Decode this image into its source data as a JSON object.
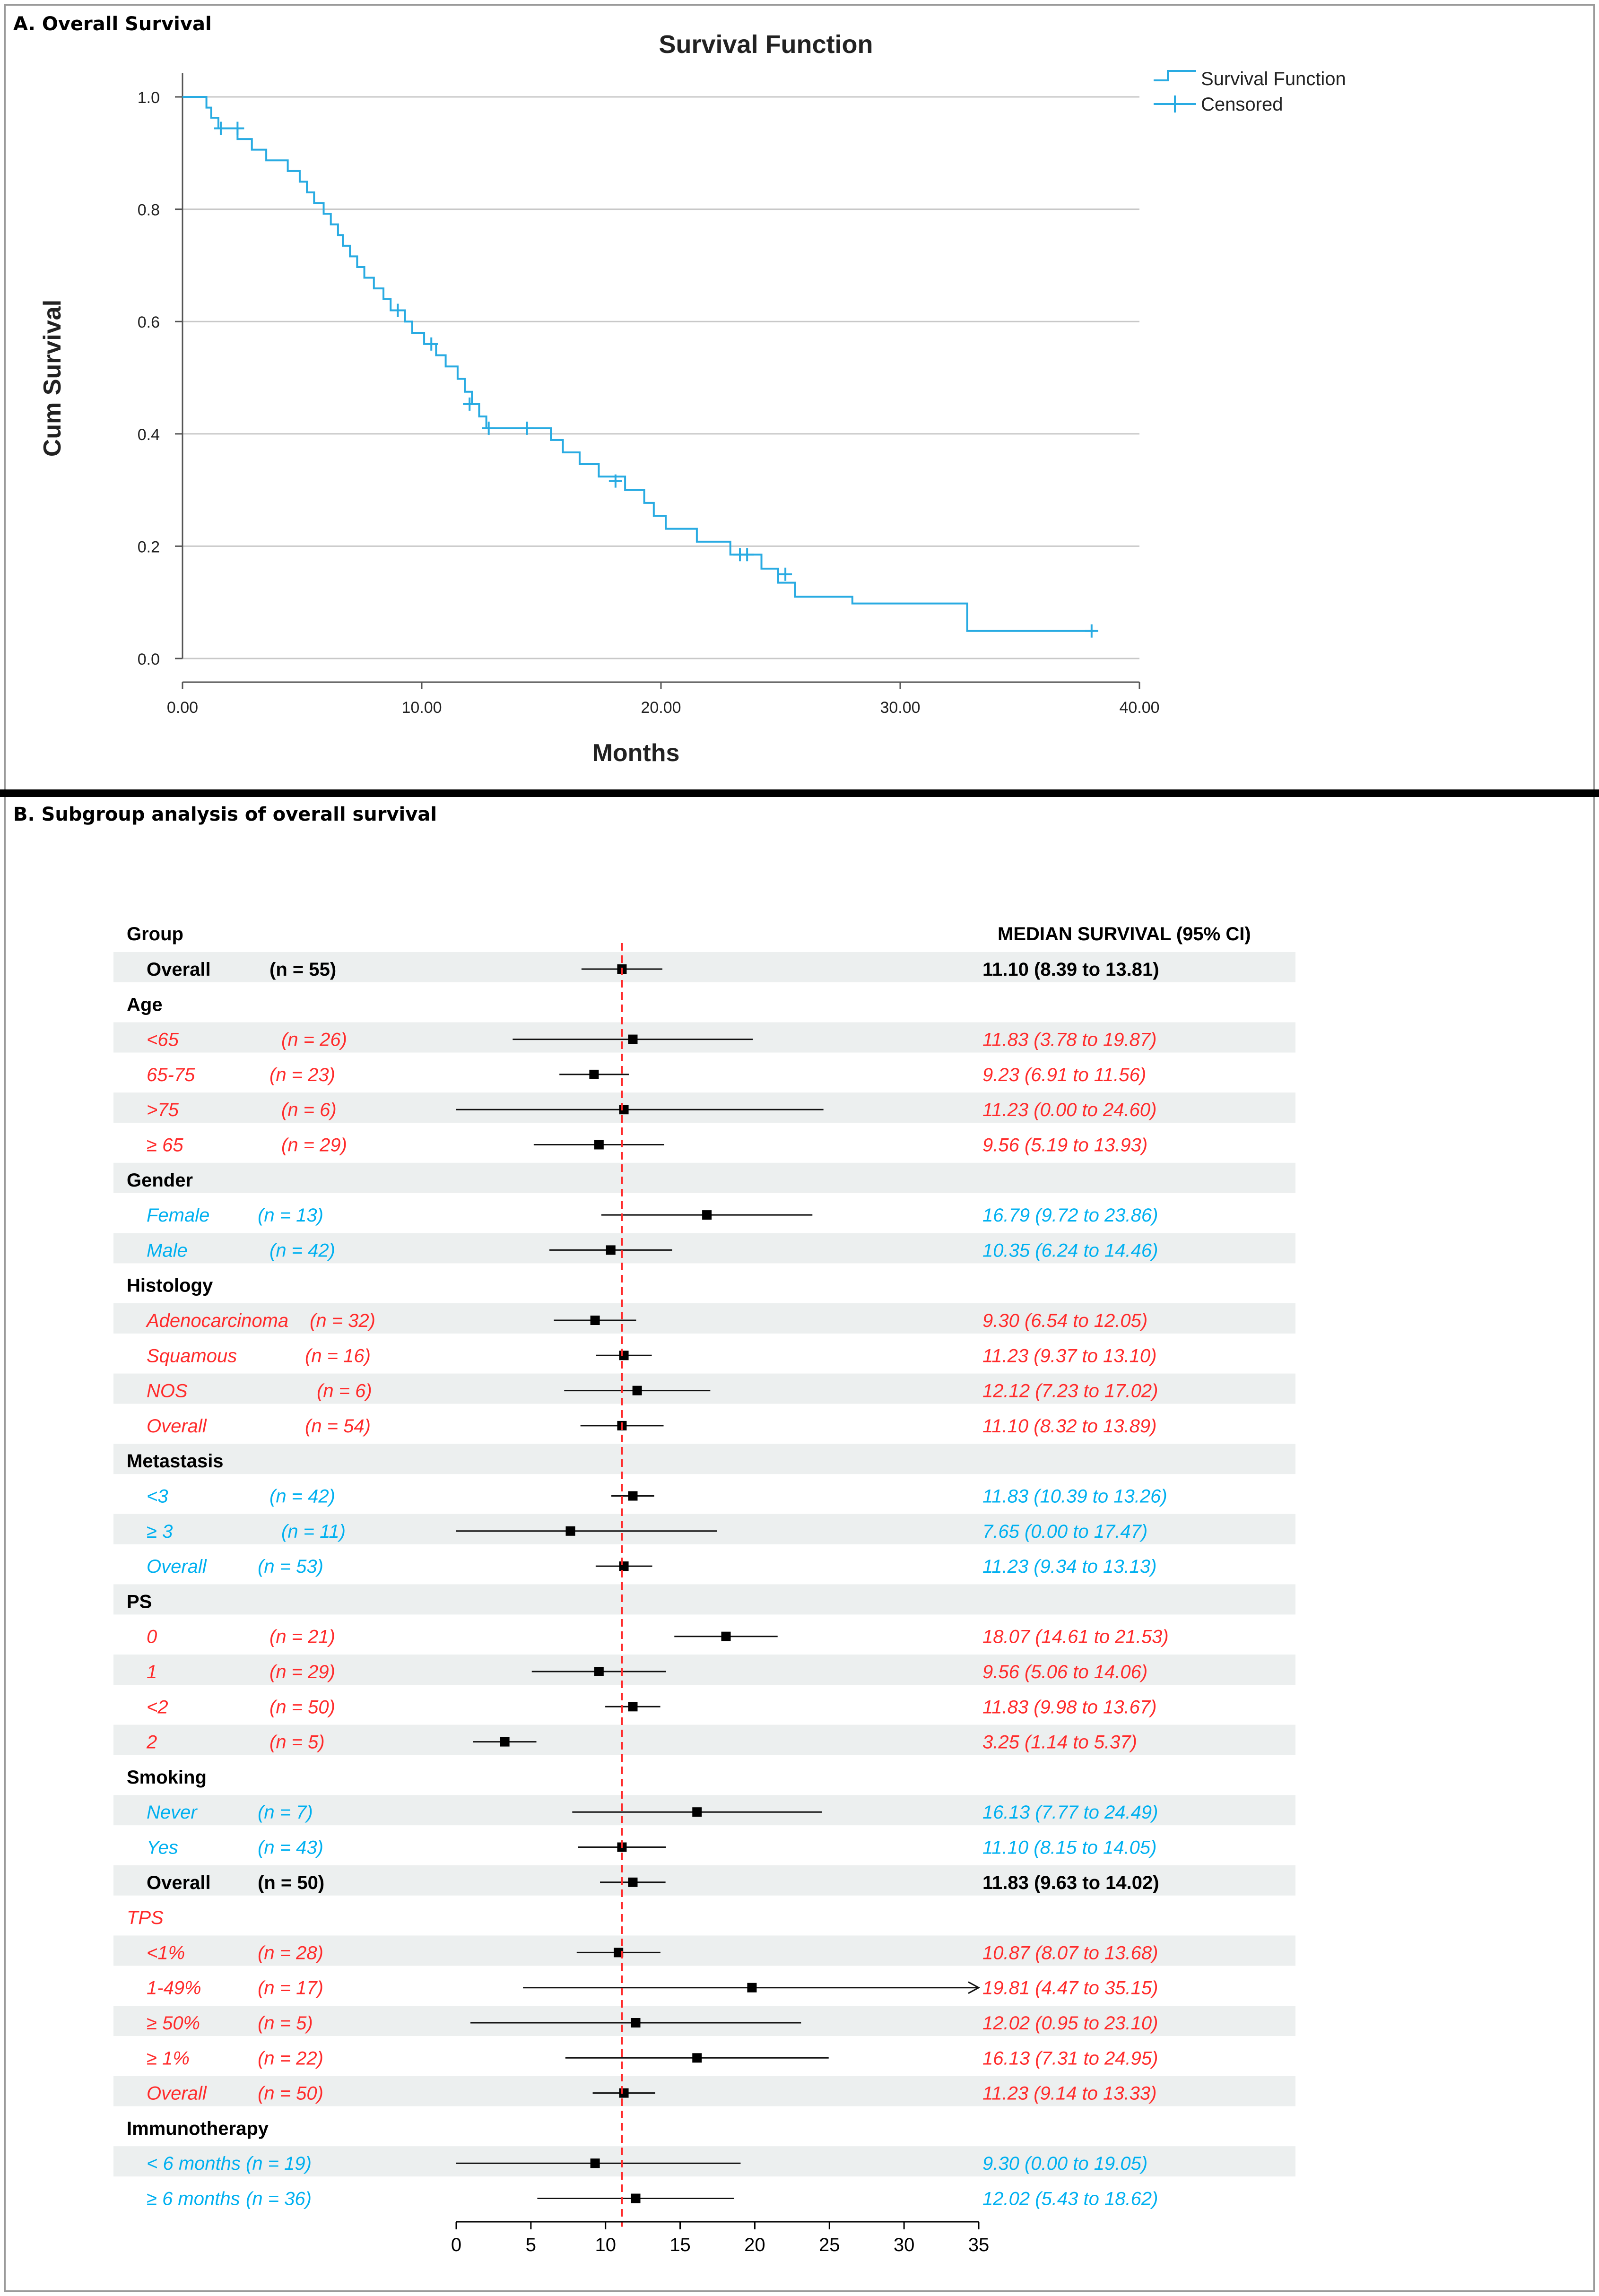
{
  "panel_a": {
    "label": "A. Overall Survival",
    "chart_data": {
      "type": "line",
      "title": "Survival Function",
      "xlabel": "Months",
      "ylabel": "Cum Survival",
      "xlim": [
        0,
        40
      ],
      "ylim": [
        0,
        1
      ],
      "x_ticks": [
        0,
        10,
        20,
        30,
        40
      ],
      "x_tick_labels": [
        "0.00",
        "10.00",
        "20.00",
        "30.00",
        "40.00"
      ],
      "y_ticks": [
        0,
        0.2,
        0.4,
        0.6,
        0.8,
        1.0
      ],
      "y_tick_labels": [
        "0.0",
        "0.2",
        "0.4",
        "0.6",
        "0.8",
        "1.0"
      ],
      "grid": "horizontal",
      "legend": [
        "Survival Function",
        "Censored"
      ],
      "legend_position": "top-right",
      "series": [
        {
          "name": "Survival Function",
          "color": "#29ABE2",
          "step_points": [
            [
              0,
              1.0
            ],
            [
              1.0,
              0.981
            ],
            [
              1.2,
              0.963
            ],
            [
              1.5,
              0.944
            ],
            [
              2.3,
              0.925
            ],
            [
              2.9,
              0.906
            ],
            [
              3.5,
              0.887
            ],
            [
              4.4,
              0.868
            ],
            [
              4.9,
              0.849
            ],
            [
              5.2,
              0.83
            ],
            [
              5.5,
              0.811
            ],
            [
              5.9,
              0.792
            ],
            [
              6.2,
              0.773
            ],
            [
              6.5,
              0.754
            ],
            [
              6.7,
              0.735
            ],
            [
              7.0,
              0.716
            ],
            [
              7.3,
              0.697
            ],
            [
              7.6,
              0.678
            ],
            [
              8.0,
              0.659
            ],
            [
              8.4,
              0.64
            ],
            [
              8.7,
              0.62
            ],
            [
              9.3,
              0.6
            ],
            [
              9.6,
              0.58
            ],
            [
              10.1,
              0.56
            ],
            [
              10.6,
              0.54
            ],
            [
              11.0,
              0.52
            ],
            [
              11.5,
              0.498
            ],
            [
              11.8,
              0.475
            ],
            [
              12.1,
              0.453
            ],
            [
              12.4,
              0.431
            ],
            [
              12.7,
              0.41
            ],
            [
              15.4,
              0.389
            ],
            [
              15.9,
              0.367
            ],
            [
              16.6,
              0.346
            ],
            [
              17.4,
              0.324
            ],
            [
              18.5,
              0.3
            ],
            [
              19.3,
              0.277
            ],
            [
              19.7,
              0.254
            ],
            [
              20.2,
              0.231
            ],
            [
              21.5,
              0.208
            ],
            [
              22.9,
              0.185
            ],
            [
              24.2,
              0.16
            ],
            [
              24.9,
              0.135
            ],
            [
              25.6,
              0.11
            ],
            [
              28.0,
              0.098
            ],
            [
              32.8,
              0.049
            ],
            [
              38.1,
              0.049
            ]
          ],
          "censored": [
            [
              1.6,
              0.944
            ],
            [
              2.3,
              0.944
            ],
            [
              9.0,
              0.62
            ],
            [
              10.4,
              0.56
            ],
            [
              12.0,
              0.453
            ],
            [
              12.8,
              0.41
            ],
            [
              14.4,
              0.41
            ],
            [
              18.1,
              0.316
            ],
            [
              23.3,
              0.185
            ],
            [
              23.6,
              0.185
            ],
            [
              25.2,
              0.15
            ],
            [
              38.0,
              0.049
            ]
          ]
        }
      ]
    }
  },
  "panel_b": {
    "label": "B. Subgroup analysis of overall survival",
    "chart_data": {
      "type": "forest",
      "left_header": "Group",
      "right_header": "MEDIAN SURVIVAL (95% CI)",
      "xlim": [
        0,
        35
      ],
      "x_ticks": [
        0,
        5,
        10,
        15,
        20,
        25,
        30,
        35
      ],
      "reference_line": 11.1,
      "colors": {
        "red": "#FF2B2B",
        "cyan": "#00B0F0",
        "black": "#000000",
        "stripe": "#ECEFEF",
        "ref": "#FF2B2B"
      },
      "rows": [
        {
          "kind": "data",
          "group": "Overall",
          "n": "(n = 55)",
          "ci_text": "11.10 (8.39 to 13.81)",
          "median": 11.1,
          "low": 8.39,
          "high": 13.81,
          "color": "black",
          "bold": true,
          "italic": false,
          "n_offset": 1
        },
        {
          "kind": "header",
          "group": "Age",
          "color": "black",
          "italic": false
        },
        {
          "kind": "data",
          "group": "<65",
          "n": "(n = 26)",
          "ci_text": "11.83 (3.78 to 19.87)",
          "median": 11.83,
          "low": 3.78,
          "high": 19.87,
          "color": "red",
          "bold": false,
          "italic": true,
          "n_offset": 2
        },
        {
          "kind": "data",
          "group": "65-75",
          "n": "(n = 23)",
          "ci_text": "9.23 (6.91 to 11.56)",
          "median": 9.23,
          "low": 6.91,
          "high": 11.56,
          "color": "red",
          "bold": false,
          "italic": true,
          "n_offset": 1
        },
        {
          "kind": "data",
          "group": ">75",
          "n": "(n = 6)",
          "ci_text": "11.23 (0.00 to 24.60)",
          "median": 11.23,
          "low": 0.0,
          "high": 24.6,
          "color": "red",
          "bold": false,
          "italic": true,
          "n_offset": 2
        },
        {
          "kind": "data",
          "group": "≥ 65",
          "n": "(n = 29)",
          "ci_text": "9.56 (5.19 to 13.93)",
          "median": 9.56,
          "low": 5.19,
          "high": 13.93,
          "color": "red",
          "bold": false,
          "italic": true,
          "n_offset": 2
        },
        {
          "kind": "header",
          "group": "Gender",
          "color": "black",
          "italic": false
        },
        {
          "kind": "data",
          "group": "Female",
          "n": "(n = 13)",
          "ci_text": "16.79 (9.72 to 23.86)",
          "median": 16.79,
          "low": 9.72,
          "high": 23.86,
          "color": "cyan",
          "bold": false,
          "italic": true,
          "n_offset": 0
        },
        {
          "kind": "data",
          "group": "Male",
          "n": "(n = 42)",
          "ci_text": "10.35 (6.24 to 14.46)",
          "median": 10.35,
          "low": 6.24,
          "high": 14.46,
          "color": "cyan",
          "bold": false,
          "italic": true,
          "n_offset": 1
        },
        {
          "kind": "header",
          "group": "Histology",
          "color": "black",
          "italic": false
        },
        {
          "kind": "data",
          "group": "Adenocarcinoma",
          "n": "(n = 32)",
          "ci_text": "9.30 (6.54 to 12.05)",
          "median": 9.3,
          "low": 6.54,
          "high": 12.05,
          "color": "red",
          "bold": false,
          "italic": true,
          "n_offset": 3
        },
        {
          "kind": "data",
          "group": "Squamous",
          "n": "(n = 16)",
          "ci_text": "11.23 (9.37 to 13.10)",
          "median": 11.23,
          "low": 9.37,
          "high": 13.1,
          "color": "red",
          "bold": false,
          "italic": true,
          "n_offset": 4
        },
        {
          "kind": "data",
          "group": "NOS",
          "n": "(n = 6)",
          "ci_text": "12.12 (7.23 to 17.02)",
          "median": 12.12,
          "low": 7.23,
          "high": 17.02,
          "color": "red",
          "bold": false,
          "italic": true,
          "n_offset": 5
        },
        {
          "kind": "data",
          "group": "Overall",
          "n": "(n = 54)",
          "ci_text": "11.10 (8.32 to 13.89)",
          "median": 11.1,
          "low": 8.32,
          "high": 13.89,
          "color": "red",
          "bold": false,
          "italic": true,
          "n_offset": 4
        },
        {
          "kind": "header",
          "group": "Metastasis",
          "color": "black",
          "italic": false
        },
        {
          "kind": "data",
          "group": "<3",
          "n": "(n = 42)",
          "ci_text": "11.83 (10.39 to 13.26)",
          "median": 11.83,
          "low": 10.39,
          "high": 13.26,
          "color": "cyan",
          "bold": false,
          "italic": true,
          "n_offset": 1
        },
        {
          "kind": "data",
          "group": "≥ 3",
          "n": "(n = 11)",
          "ci_text": "7.65 (0.00 to 17.47)",
          "median": 7.65,
          "low": 0.0,
          "high": 17.47,
          "color": "cyan",
          "bold": false,
          "italic": true,
          "n_offset": 2
        },
        {
          "kind": "data",
          "group": "Overall",
          "n": "(n = 53)",
          "ci_text": "11.23 (9.34 to 13.13)",
          "median": 11.23,
          "low": 9.34,
          "high": 13.13,
          "color": "cyan",
          "bold": false,
          "italic": true,
          "n_offset": 0
        },
        {
          "kind": "header",
          "group": "PS",
          "color": "black",
          "italic": false
        },
        {
          "kind": "data",
          "group": "0",
          "n": "(n = 21)",
          "ci_text": "18.07 (14.61 to 21.53)",
          "median": 18.07,
          "low": 14.61,
          "high": 21.53,
          "color": "red",
          "bold": false,
          "italic": true,
          "n_offset": 1
        },
        {
          "kind": "data",
          "group": "1",
          "n": "(n = 29)",
          "ci_text": "9.56 (5.06 to 14.06)",
          "median": 9.56,
          "low": 5.06,
          "high": 14.06,
          "color": "red",
          "bold": false,
          "italic": true,
          "n_offset": 1
        },
        {
          "kind": "data",
          "group": "<2",
          "n": "(n = 50)",
          "ci_text": "11.83 (9.98 to 13.67)",
          "median": 11.83,
          "low": 9.98,
          "high": 13.67,
          "color": "red",
          "bold": false,
          "italic": true,
          "n_offset": 1
        },
        {
          "kind": "data",
          "group": "2",
          "n": "(n = 5)",
          "ci_text": "3.25 (1.14 to 5.37)",
          "median": 3.25,
          "low": 1.14,
          "high": 5.37,
          "color": "red",
          "bold": false,
          "italic": true,
          "n_offset": 1
        },
        {
          "kind": "header",
          "group": "Smoking",
          "color": "black",
          "italic": false
        },
        {
          "kind": "data",
          "group": "Never",
          "n": "(n = 7)",
          "ci_text": "16.13 (7.77 to 24.49)",
          "median": 16.13,
          "low": 7.77,
          "high": 24.49,
          "color": "cyan",
          "bold": false,
          "italic": true,
          "n_offset": 0
        },
        {
          "kind": "data",
          "group": "Yes",
          "n": "(n = 43)",
          "ci_text": "11.10 (8.15 to 14.05)",
          "median": 11.1,
          "low": 8.15,
          "high": 14.05,
          "color": "cyan",
          "bold": false,
          "italic": true,
          "n_offset": 0
        },
        {
          "kind": "data",
          "group": "Overall",
          "n": "(n = 50)",
          "ci_text": "11.83 (9.63 to 14.02)",
          "median": 11.83,
          "low": 9.63,
          "high": 14.02,
          "color": "black",
          "bold": true,
          "italic": false,
          "n_offset": 0
        },
        {
          "kind": "header",
          "group": "TPS",
          "color": "red",
          "italic": true
        },
        {
          "kind": "data",
          "group": "<1%",
          "n": "(n = 28)",
          "ci_text": "10.87 (8.07 to 13.68)",
          "median": 10.87,
          "low": 8.07,
          "high": 13.68,
          "color": "red",
          "bold": false,
          "italic": true,
          "n_offset": 0
        },
        {
          "kind": "data",
          "group": "1-49%",
          "n": "(n = 17)",
          "ci_text": "19.81 (4.47 to 35.15)",
          "median": 19.81,
          "low": 4.47,
          "high": 35.15,
          "color": "red",
          "bold": false,
          "italic": true,
          "n_offset": 0,
          "arrow_right": true
        },
        {
          "kind": "data",
          "group": "≥ 50%",
          "n": "(n = 5)",
          "ci_text": "12.02 (0.95 to 23.10)",
          "median": 12.02,
          "low": 0.95,
          "high": 23.1,
          "color": "red",
          "bold": false,
          "italic": true,
          "n_offset": 0
        },
        {
          "kind": "data",
          "group": "≥ 1%",
          "n": "(n = 22)",
          "ci_text": "16.13 (7.31 to 24.95)",
          "median": 16.13,
          "low": 7.31,
          "high": 24.95,
          "color": "red",
          "bold": false,
          "italic": true,
          "n_offset": 0
        },
        {
          "kind": "data",
          "group": "Overall",
          "n": "(n = 50)",
          "ci_text": "11.23 (9.14 to 13.33)",
          "median": 11.23,
          "low": 9.14,
          "high": 13.33,
          "color": "red",
          "bold": false,
          "italic": true,
          "n_offset": 0
        },
        {
          "kind": "header",
          "group": "Immunotherapy",
          "color": "black",
          "italic": false
        },
        {
          "kind": "data",
          "group": "< 6 months",
          "n": "(n = 19)",
          "ci_text": "9.30 (0.00 to 19.05)",
          "median": 9.3,
          "low": 0.0,
          "high": 19.05,
          "color": "cyan",
          "bold": false,
          "italic": true,
          "n_offset": -1
        },
        {
          "kind": "data",
          "group": "≥ 6 months",
          "n": "(n = 36)",
          "ci_text": "12.02 (5.43 to 18.62)",
          "median": 12.02,
          "low": 5.43,
          "high": 18.62,
          "color": "cyan",
          "bold": false,
          "italic": true,
          "n_offset": -1
        }
      ]
    }
  }
}
